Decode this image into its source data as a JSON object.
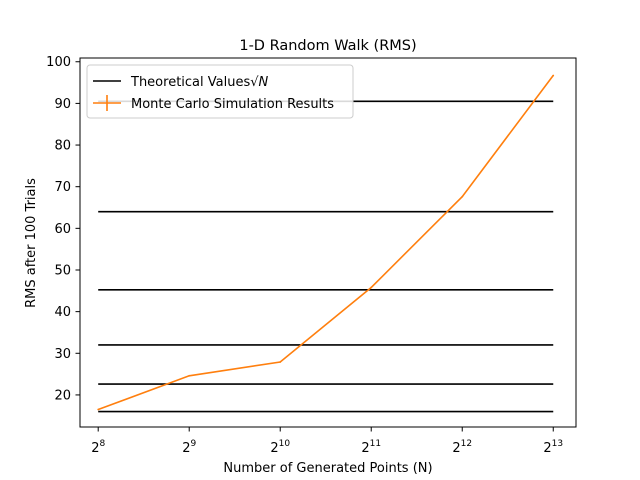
{
  "chart_data": {
    "type": "line",
    "title": "1-D Random Walk (RMS)",
    "xlabel": "Number of Generated Points (N)",
    "ylabel": "RMS after 100 Trials",
    "x_scale": "log2",
    "xlim_exp": [
      7.8,
      13.25
    ],
    "ylim": [
      12.3,
      100.9
    ],
    "x_ticks": [
      {
        "base": "2",
        "exp": "8",
        "value": 8
      },
      {
        "base": "2",
        "exp": "9",
        "value": 9
      },
      {
        "base": "2",
        "exp": "10",
        "value": 10
      },
      {
        "base": "2",
        "exp": "11",
        "value": 11
      },
      {
        "base": "2",
        "exp": "12",
        "value": 12
      },
      {
        "base": "2",
        "exp": "13",
        "value": 13
      }
    ],
    "y_ticks": [
      "20",
      "30",
      "40",
      "50",
      "60",
      "70",
      "80",
      "90",
      "100"
    ],
    "theoretical": {
      "name": "Theoretical Values",
      "name_math": "√N",
      "color": "#000000",
      "values": [
        16,
        22.6,
        32,
        45.25,
        64,
        90.5
      ]
    },
    "simulation": {
      "name": "Monte Carlo Simulation Results",
      "color": "#ff7f0e",
      "x_exp": [
        8,
        9,
        10,
        11,
        12,
        13
      ],
      "values": [
        16.5,
        24.6,
        27.9,
        45.8,
        67.6,
        96.7
      ]
    },
    "grid": false,
    "legend_position": "upper-left"
  }
}
